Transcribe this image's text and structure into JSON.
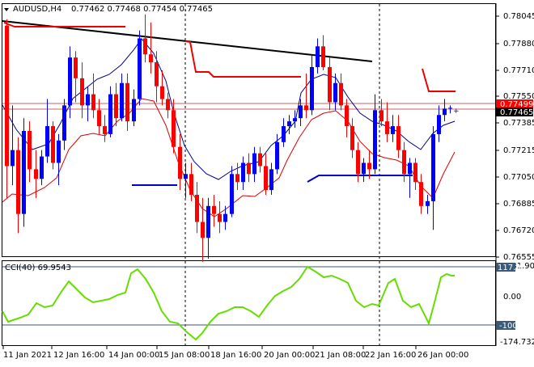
{
  "header": {
    "symbol": "AUDUSD,H4",
    "ohlc": "0.77462 0.77468 0.77454 0.77465"
  },
  "price_axis": {
    "labels": [
      "0.78045",
      "0.77880",
      "0.77710",
      "0.77550",
      "0.77385",
      "0.77215",
      "0.77050",
      "0.76885",
      "0.76720",
      "0.76555"
    ],
    "tags": [
      {
        "text": "0.77499",
        "color": "#ff0000"
      },
      {
        "text": "0.77465",
        "color": "#ffffff"
      }
    ]
  },
  "cci_panel": {
    "label": "CCI(40) 69.9543",
    "axis_labels": [
      "131.9055",
      "117.9",
      "0.00",
      "-100",
      "-174.7329"
    ]
  },
  "time_axis": {
    "labels": [
      "11 Jan 2021",
      "12 Jan 16:00",
      "14 Jan 00:00",
      "15 Jan 08:00",
      "18 Jan 16:00",
      "20 Jan 00:00",
      "21 Jan 08:00",
      "22 Jan 16:00",
      "26 Jan 00:00"
    ]
  },
  "colors": {
    "bull": "#0000ff",
    "bear": "#ff0000",
    "fast_ma": "#00008b",
    "slow_ma": "#dd0000",
    "trendline": "#000000",
    "cci": "#66dd00",
    "hline": "#c86464",
    "ref_line": "#3a5a7a"
  },
  "chart_data": {
    "type": "candlestick",
    "price_range": [
      0.76535,
      0.78115
    ],
    "cci_range": [
      -174.7329,
      131.9055
    ],
    "candles": [
      [
        0.7798,
        0.7802,
        0.769,
        0.771
      ],
      [
        0.771,
        0.7748,
        0.7698,
        0.772
      ],
      [
        0.772,
        0.7728,
        0.7668,
        0.768
      ],
      [
        0.768,
        0.774,
        0.7672,
        0.7732
      ],
      [
        0.7732,
        0.7738,
        0.77,
        0.7708
      ],
      [
        0.7708,
        0.772,
        0.769,
        0.7702
      ],
      [
        0.7702,
        0.772,
        0.7698,
        0.7716
      ],
      [
        0.7716,
        0.7752,
        0.7712,
        0.7735
      ],
      [
        0.7735,
        0.7738,
        0.7708,
        0.7712
      ],
      [
        0.7712,
        0.773,
        0.7698,
        0.7726
      ],
      [
        0.7726,
        0.7752,
        0.772,
        0.7748
      ],
      [
        0.7748,
        0.7785,
        0.774,
        0.7778
      ],
      [
        0.7778,
        0.7782,
        0.775,
        0.7765
      ],
      [
        0.7765,
        0.7775,
        0.774,
        0.7748
      ],
      [
        0.7748,
        0.776,
        0.7738,
        0.7755
      ],
      [
        0.7755,
        0.7768,
        0.774,
        0.7745
      ],
      [
        0.7745,
        0.7752,
        0.773,
        0.7735
      ],
      [
        0.7735,
        0.7742,
        0.7725,
        0.773
      ],
      [
        0.773,
        0.776,
        0.7728,
        0.7755
      ],
      [
        0.7755,
        0.7762,
        0.7735,
        0.774
      ],
      [
        0.774,
        0.7768,
        0.7738,
        0.7762
      ],
      [
        0.7762,
        0.7768,
        0.7732,
        0.7738
      ],
      [
        0.7738,
        0.7758,
        0.7735,
        0.7752
      ],
      [
        0.7752,
        0.7795,
        0.7748,
        0.779
      ],
      [
        0.779,
        0.7805,
        0.7775,
        0.778
      ],
      [
        0.778,
        0.78,
        0.7768,
        0.7775
      ],
      [
        0.7775,
        0.7782,
        0.775,
        0.776
      ],
      [
        0.776,
        0.777,
        0.7748,
        0.7752
      ],
      [
        0.7752,
        0.7756,
        0.774,
        0.7745
      ],
      [
        0.7745,
        0.7752,
        0.7718,
        0.7722
      ],
      [
        0.7722,
        0.773,
        0.7695,
        0.7702
      ],
      [
        0.7702,
        0.7712,
        0.769,
        0.7705
      ],
      [
        0.7705,
        0.7712,
        0.7688,
        0.7692
      ],
      [
        0.7692,
        0.77,
        0.7668,
        0.7675
      ],
      [
        0.7675,
        0.769,
        0.765,
        0.7665
      ],
      [
        0.7665,
        0.769,
        0.7652,
        0.7685
      ],
      [
        0.7685,
        0.7692,
        0.7672,
        0.768
      ],
      [
        0.768,
        0.7688,
        0.7668,
        0.7675
      ],
      [
        0.7675,
        0.7685,
        0.767,
        0.768
      ],
      [
        0.768,
        0.771,
        0.7678,
        0.7705
      ],
      [
        0.7705,
        0.7712,
        0.7695,
        0.77
      ],
      [
        0.77,
        0.7716,
        0.7695,
        0.7712
      ],
      [
        0.7712,
        0.7718,
        0.77,
        0.7705
      ],
      [
        0.7705,
        0.7722,
        0.77,
        0.7718
      ],
      [
        0.7718,
        0.7722,
        0.7706,
        0.771
      ],
      [
        0.771,
        0.7718,
        0.7692,
        0.7695
      ],
      [
        0.7695,
        0.7712,
        0.7692,
        0.7708
      ],
      [
        0.7708,
        0.773,
        0.7705,
        0.7725
      ],
      [
        0.7725,
        0.774,
        0.7722,
        0.7735
      ],
      [
        0.7735,
        0.7742,
        0.773,
        0.7738
      ],
      [
        0.7738,
        0.7745,
        0.7734,
        0.774
      ],
      [
        0.774,
        0.7752,
        0.7735,
        0.7748
      ],
      [
        0.7748,
        0.7768,
        0.774,
        0.7745
      ],
      [
        0.7745,
        0.778,
        0.7742,
        0.7772
      ],
      [
        0.7772,
        0.779,
        0.7768,
        0.7785
      ],
      [
        0.7785,
        0.7792,
        0.777,
        0.7772
      ],
      [
        0.7772,
        0.7778,
        0.7745,
        0.775
      ],
      [
        0.775,
        0.7768,
        0.7745,
        0.7762
      ],
      [
        0.7762,
        0.7768,
        0.7745,
        0.7748
      ],
      [
        0.7748,
        0.7752,
        0.7728,
        0.7735
      ],
      [
        0.7735,
        0.774,
        0.7715,
        0.772
      ],
      [
        0.772,
        0.7725,
        0.77,
        0.7705
      ],
      [
        0.7705,
        0.7715,
        0.77,
        0.7712
      ],
      [
        0.7712,
        0.772,
        0.7702,
        0.7708
      ],
      [
        0.7708,
        0.7755,
        0.7705,
        0.7745
      ],
      [
        0.7745,
        0.7752,
        0.7735,
        0.7738
      ],
      [
        0.7738,
        0.775,
        0.7725,
        0.773
      ],
      [
        0.773,
        0.7742,
        0.7725,
        0.7735
      ],
      [
        0.7735,
        0.7742,
        0.7715,
        0.772
      ],
      [
        0.772,
        0.7725,
        0.77,
        0.7705
      ],
      [
        0.7705,
        0.7715,
        0.769,
        0.7712
      ],
      [
        0.7712,
        0.7715,
        0.7695,
        0.77
      ],
      [
        0.77,
        0.7705,
        0.768,
        0.7685
      ],
      [
        0.7685,
        0.7692,
        0.768,
        0.7688
      ],
      [
        0.7688,
        0.7735,
        0.767,
        0.773
      ],
      [
        0.773,
        0.7748,
        0.7725,
        0.7742
      ],
      [
        0.7742,
        0.7752,
        0.7738,
        0.7746
      ],
      [
        0.7746,
        0.7748,
        0.7743,
        0.77465
      ]
    ]
  }
}
